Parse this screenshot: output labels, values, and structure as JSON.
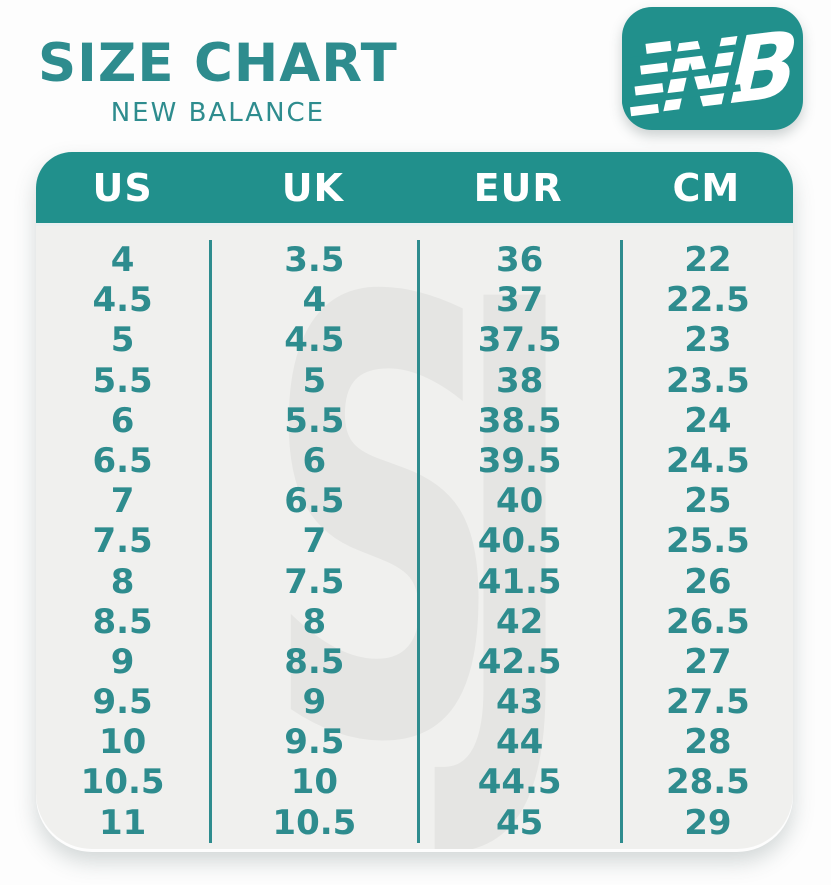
{
  "colors": {
    "teal": "#21908C",
    "text_teal": "#2E8C8E",
    "body_bg": "#F0F0EE",
    "watermark": "#E5E5E3",
    "page_bg": "#FDFDFD",
    "header_text": "#FFFFFF"
  },
  "header": {
    "title": "SIZE CHART",
    "subtitle": "NEW BALANCE"
  },
  "logo": {
    "name": "new-balance-logo",
    "letters": "NB"
  },
  "watermark_text": "SJ",
  "chart_data": {
    "type": "table",
    "title": "SIZE CHART",
    "subtitle": "NEW BALANCE",
    "columns": [
      "US",
      "UK",
      "EUR",
      "CM"
    ],
    "rows": [
      [
        "4",
        "3.5",
        "36",
        "22"
      ],
      [
        "4.5",
        "4",
        "37",
        "22.5"
      ],
      [
        "5",
        "4.5",
        "37.5",
        "23"
      ],
      [
        "5.5",
        "5",
        "38",
        "23.5"
      ],
      [
        "6",
        "5.5",
        "38.5",
        "24"
      ],
      [
        "6.5",
        "6",
        "39.5",
        "24.5"
      ],
      [
        "7",
        "6.5",
        "40",
        "25"
      ],
      [
        "7.5",
        "7",
        "40.5",
        "25.5"
      ],
      [
        "8",
        "7.5",
        "41.5",
        "26"
      ],
      [
        "8.5",
        "8",
        "42",
        "26.5"
      ],
      [
        "9",
        "8.5",
        "42.5",
        "27"
      ],
      [
        "9.5",
        "9",
        "43",
        "27.5"
      ],
      [
        "10",
        "9.5",
        "44",
        "28"
      ],
      [
        "10.5",
        "10",
        "44.5",
        "28.5"
      ],
      [
        "11",
        "10.5",
        "45",
        "29"
      ]
    ],
    "legend": null,
    "grid": "vertical-dividers-only"
  }
}
